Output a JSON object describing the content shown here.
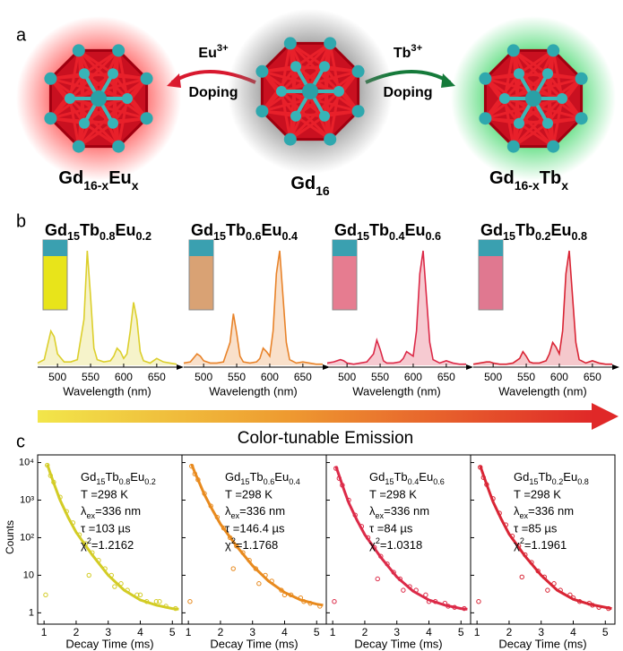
{
  "panel_a": {
    "label": "a",
    "left": [
      "Gd",
      "16-x",
      "Eu",
      "x"
    ],
    "center": [
      "Gd",
      "16"
    ],
    "right": [
      "Gd",
      "16-x",
      "Tb",
      "x"
    ],
    "arrow_left": {
      "ion": [
        "Eu",
        "3+"
      ],
      "text": "Doping"
    },
    "arrow_right": {
      "ion": [
        "Tb",
        "3+"
      ],
      "text": "Doping"
    }
  },
  "panel_b": {
    "label": "b",
    "arrow_text": "Color-tunable Emission"
  },
  "panel_c": {
    "label": "c",
    "ylabel": "Counts"
  },
  "chart_data": [
    {
      "type": "spectrum",
      "title": [
        "Gd",
        "15",
        "Tb",
        "0.8",
        "Eu",
        "0.2"
      ],
      "color": "#dccf2c",
      "xlabel": "Wavelength (nm)",
      "x": [
        470,
        480,
        490,
        495,
        500,
        510,
        520,
        530,
        540,
        545,
        550,
        555,
        560,
        570,
        580,
        585,
        590,
        595,
        600,
        605,
        610,
        615,
        620,
        625,
        630,
        640,
        650,
        660,
        670,
        680
      ],
      "values": [
        2,
        5,
        30,
        25,
        10,
        3,
        3,
        5,
        40,
        100,
        60,
        15,
        5,
        3,
        4,
        8,
        15,
        12,
        6,
        10,
        30,
        55,
        40,
        12,
        4,
        2,
        6,
        3,
        2,
        1
      ],
      "xlim": [
        470,
        680
      ],
      "ylim": [
        0,
        100
      ],
      "xticks": [
        500,
        550,
        600,
        650
      ]
    },
    {
      "type": "spectrum",
      "title": [
        "Gd",
        "15",
        "Tb",
        "0.6",
        "Eu",
        "0.4"
      ],
      "color": "#e8832a",
      "xlabel": "Wavelength (nm)",
      "x": [
        470,
        480,
        490,
        495,
        500,
        510,
        520,
        530,
        540,
        545,
        550,
        555,
        560,
        570,
        580,
        585,
        590,
        595,
        600,
        605,
        610,
        615,
        620,
        625,
        630,
        640,
        650,
        660,
        670,
        680
      ],
      "values": [
        2,
        3,
        10,
        8,
        4,
        2,
        2,
        3,
        20,
        45,
        28,
        8,
        3,
        2,
        3,
        6,
        15,
        12,
        8,
        30,
        80,
        100,
        60,
        20,
        5,
        2,
        3,
        2,
        1,
        1
      ],
      "xlim": [
        470,
        680
      ],
      "ylim": [
        0,
        100
      ],
      "xticks": [
        500,
        550,
        600,
        650
      ]
    },
    {
      "type": "spectrum",
      "title": [
        "Gd",
        "15",
        "Tb",
        "0.4",
        "Eu",
        "0.6"
      ],
      "color": "#dc2a48",
      "xlabel": "Wavelength (nm)",
      "x": [
        470,
        480,
        490,
        495,
        500,
        510,
        520,
        530,
        540,
        545,
        550,
        555,
        560,
        570,
        580,
        585,
        590,
        595,
        600,
        605,
        610,
        615,
        620,
        625,
        630,
        640,
        650,
        660,
        670,
        680
      ],
      "values": [
        2,
        3,
        5,
        4,
        2,
        1,
        2,
        3,
        10,
        22,
        14,
        4,
        2,
        2,
        3,
        6,
        12,
        10,
        8,
        30,
        80,
        100,
        60,
        20,
        5,
        2,
        4,
        2,
        1,
        1
      ],
      "xlim": [
        470,
        680
      ],
      "ylim": [
        0,
        100
      ],
      "xticks": [
        500,
        550,
        600,
        650
      ]
    },
    {
      "type": "spectrum",
      "title": [
        "Gd",
        "15",
        "Tb",
        "0.2",
        "Eu",
        "0.8"
      ],
      "color": "#d92535",
      "xlabel": "Wavelength (nm)",
      "x": [
        470,
        480,
        490,
        495,
        500,
        510,
        520,
        530,
        540,
        545,
        550,
        555,
        560,
        570,
        580,
        585,
        590,
        595,
        600,
        605,
        610,
        615,
        620,
        625,
        630,
        640,
        650,
        660,
        670,
        680
      ],
      "values": [
        1,
        2,
        3,
        3,
        2,
        1,
        1,
        2,
        6,
        12,
        8,
        3,
        2,
        2,
        4,
        10,
        20,
        16,
        10,
        30,
        80,
        100,
        60,
        20,
        5,
        2,
        4,
        2,
        1,
        1
      ],
      "xlim": [
        470,
        680
      ],
      "ylim": [
        0,
        100
      ],
      "xticks": [
        500,
        550,
        600,
        650
      ]
    },
    {
      "type": "decay",
      "color": "#d3cc25",
      "xlabel": "Decay Time (ms)",
      "log_y": true,
      "formula": [
        "Gd",
        "15",
        "Tb",
        "0.8",
        "Eu",
        "0.2"
      ],
      "temp": "T =298 K",
      "lambda": [
        "λ",
        "ex",
        "=336 nm"
      ],
      "tau": "τ =103 µs",
      "chi": [
        "χ",
        "2",
        "=1.2162"
      ],
      "x": [
        1.05,
        1.1,
        1.2,
        1.3,
        1.5,
        1.7,
        1.9,
        2.1,
        2.3,
        2.4,
        2.5,
        2.7,
        2.9,
        3.1,
        3.2,
        3.4,
        3.6,
        3.9,
        4.0,
        4.2,
        4.5,
        4.6,
        4.8,
        5.1
      ],
      "values": [
        3,
        8500,
        4500,
        3000,
        1200,
        500,
        250,
        120,
        70,
        10,
        40,
        25,
        15,
        10,
        5,
        6,
        4,
        3,
        3,
        2,
        2,
        2,
        1.5,
        1.3
      ],
      "fit": {
        "x": [
          1.1,
          1.2,
          1.35,
          1.5,
          1.75,
          2,
          2.5,
          3,
          3.5,
          4,
          4.5,
          5,
          5.2
        ],
        "values": [
          9000,
          5000,
          2200,
          1000,
          350,
          140,
          35,
          10,
          4,
          2.2,
          1.6,
          1.3,
          1.25
        ]
      },
      "xlim": [
        0.8,
        5.3
      ],
      "ylim": [
        0.5,
        16000
      ],
      "xticks": [
        1,
        2,
        3,
        4,
        5
      ],
      "yticks": [
        1,
        10,
        {
          "value": 100,
          "label": "10²"
        },
        {
          "value": 1000,
          "label": "10³"
        },
        {
          "value": 10000,
          "label": "10⁴"
        }
      ]
    },
    {
      "type": "decay",
      "color": "#e88a1e",
      "xlabel": "Decay Time (ms)",
      "log_y": true,
      "formula": [
        "Gd",
        "15",
        "Tb",
        "0.6",
        "Eu",
        "0.4"
      ],
      "temp": "T =298 K",
      "lambda": [
        "λ",
        "ex",
        "=336 nm"
      ],
      "tau": "τ =146.4 µs",
      "chi": [
        "χ",
        "2",
        "=1.1768"
      ],
      "x": [
        1.05,
        1.1,
        1.2,
        1.3,
        1.5,
        1.7,
        1.9,
        2.1,
        2.3,
        2.4,
        2.5,
        2.7,
        2.9,
        3.1,
        3.2,
        3.4,
        3.6,
        3.9,
        4.0,
        4.2,
        4.5,
        4.6,
        4.8,
        5.1
      ],
      "values": [
        2,
        8000,
        5000,
        3500,
        1500,
        700,
        350,
        180,
        100,
        15,
        60,
        40,
        25,
        15,
        6,
        10,
        7,
        4,
        3,
        3,
        2.5,
        2,
        1.8,
        1.5
      ],
      "fit": {
        "x": [
          1.1,
          1.2,
          1.35,
          1.5,
          1.75,
          2,
          2.5,
          3,
          3.5,
          4,
          4.5,
          5,
          5.2
        ],
        "values": [
          9000,
          5500,
          2800,
          1400,
          550,
          230,
          60,
          18,
          7,
          3.5,
          2.2,
          1.7,
          1.6
        ]
      },
      "xlim": [
        0.8,
        5.3
      ],
      "ylim": [
        0.5,
        16000
      ],
      "xticks": [
        1,
        2,
        3,
        4,
        5
      ],
      "yticks": [
        1,
        10,
        {
          "value": 100,
          "label": "10²"
        },
        {
          "value": 1000,
          "label": "10³"
        },
        {
          "value": 10000,
          "label": "10⁴"
        }
      ]
    },
    {
      "type": "decay",
      "color": "#dc2a48",
      "xlabel": "Decay Time (ms)",
      "log_y": true,
      "formula": [
        "Gd",
        "15",
        "Tb",
        "0.4",
        "Eu",
        "0.6"
      ],
      "temp": "T =298 K",
      "lambda": [
        "λ",
        "ex",
        "=336 nm"
      ],
      "tau": "τ =84 µs",
      "chi": [
        "χ",
        "2",
        "=1.0318"
      ],
      "x": [
        1.05,
        1.1,
        1.2,
        1.3,
        1.5,
        1.7,
        1.9,
        2.1,
        2.3,
        2.4,
        2.5,
        2.7,
        2.9,
        3.1,
        3.2,
        3.4,
        3.6,
        3.9,
        4.0,
        4.2,
        4.5,
        4.6,
        4.8,
        5.1
      ],
      "values": [
        2,
        7000,
        3800,
        2500,
        1000,
        400,
        200,
        100,
        55,
        8,
        32,
        20,
        12,
        8,
        4,
        5,
        4,
        3,
        2,
        2,
        1.8,
        1.5,
        1.4,
        1.3
      ],
      "fit": {
        "x": [
          1.1,
          1.2,
          1.35,
          1.5,
          1.75,
          2,
          2.5,
          3,
          3.5,
          4,
          4.5,
          5,
          5.2
        ],
        "values": [
          8000,
          4500,
          1900,
          850,
          300,
          120,
          30,
          9,
          3.8,
          2.2,
          1.6,
          1.3,
          1.25
        ]
      },
      "xlim": [
        0.8,
        5.3
      ],
      "ylim": [
        0.5,
        16000
      ],
      "xticks": [
        1,
        2,
        3,
        4,
        5
      ],
      "yticks": [
        1,
        10,
        {
          "value": 100,
          "label": "10²"
        },
        {
          "value": 1000,
          "label": "10³"
        },
        {
          "value": 10000,
          "label": "10⁴"
        }
      ]
    },
    {
      "type": "decay",
      "color": "#d92535",
      "xlabel": "Decay Time (ms)",
      "log_y": true,
      "formula": [
        "Gd",
        "15",
        "Tb",
        "0.2",
        "Eu",
        "0.8"
      ],
      "temp": "T =298 K",
      "lambda": [
        "λ",
        "ex",
        "=336 nm"
      ],
      "tau": "τ =85 µs",
      "chi": [
        "χ",
        "2",
        "=1.1961"
      ],
      "x": [
        1.05,
        1.1,
        1.2,
        1.3,
        1.5,
        1.7,
        1.9,
        2.1,
        2.3,
        2.4,
        2.5,
        2.7,
        2.9,
        3.1,
        3.2,
        3.4,
        3.6,
        3.9,
        4.0,
        4.2,
        4.5,
        4.6,
        4.8,
        5.1
      ],
      "values": [
        2,
        7500,
        4000,
        2600,
        1100,
        450,
        220,
        110,
        60,
        9,
        35,
        22,
        13,
        9,
        4,
        6,
        4,
        3,
        2.5,
        2,
        1.8,
        1.6,
        1.4,
        1.3
      ],
      "fit": {
        "x": [
          1.1,
          1.2,
          1.35,
          1.5,
          1.75,
          2,
          2.5,
          3,
          3.5,
          4,
          4.5,
          5,
          5.2
        ],
        "values": [
          8200,
          4600,
          2000,
          900,
          320,
          125,
          32,
          10,
          4,
          2.3,
          1.7,
          1.4,
          1.3
        ]
      },
      "xlim": [
        0.8,
        5.3
      ],
      "ylim": [
        0.5,
        16000
      ],
      "xticks": [
        1,
        2,
        3,
        4,
        5
      ],
      "yticks": [
        1,
        10,
        {
          "value": 100,
          "label": "10²"
        },
        {
          "value": 1000,
          "label": "10³"
        },
        {
          "value": 10000,
          "label": "10⁴"
        }
      ]
    }
  ]
}
